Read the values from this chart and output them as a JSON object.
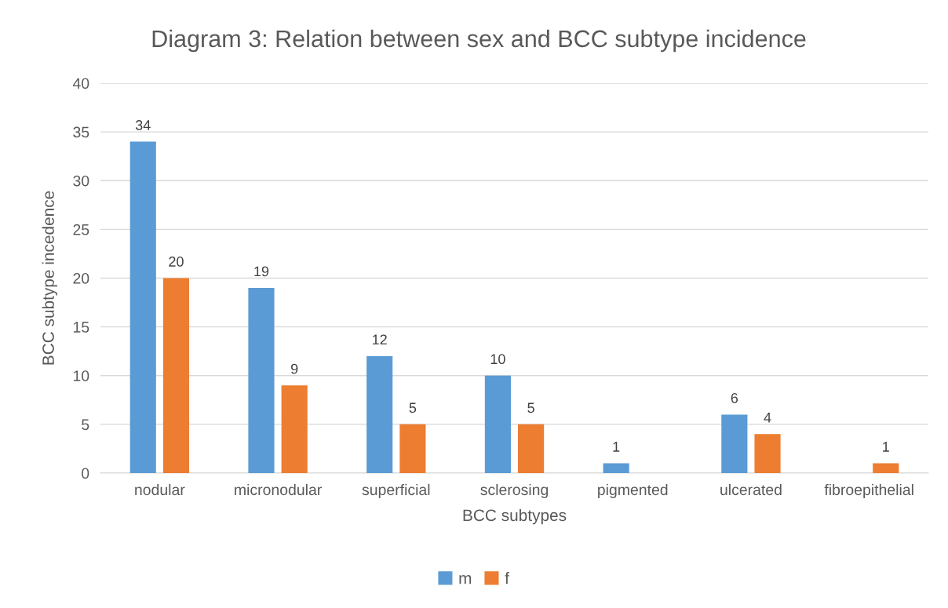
{
  "chart_data": {
    "type": "bar",
    "title": "Diagram 3: Relation between sex and BCC subtype incidence",
    "xlabel": "BCC subtypes",
    "ylabel": "BCC subtype incedence",
    "categories": [
      "nodular",
      "micronodular",
      "superficial",
      "sclerosing",
      "pigmented",
      "ulcerated",
      "fibroepithelial"
    ],
    "series": [
      {
        "name": "m",
        "color": "#5b9bd5",
        "values": [
          34,
          19,
          12,
          10,
          1,
          6,
          null
        ]
      },
      {
        "name": "f",
        "color": "#ed7d31",
        "values": [
          20,
          9,
          5,
          5,
          null,
          4,
          1
        ]
      }
    ],
    "ylim": [
      0,
      40
    ],
    "yticks": [
      0,
      5,
      10,
      15,
      20,
      25,
      30,
      35,
      40
    ],
    "grid": "y",
    "legend": "bottom",
    "data_labels": true
  }
}
